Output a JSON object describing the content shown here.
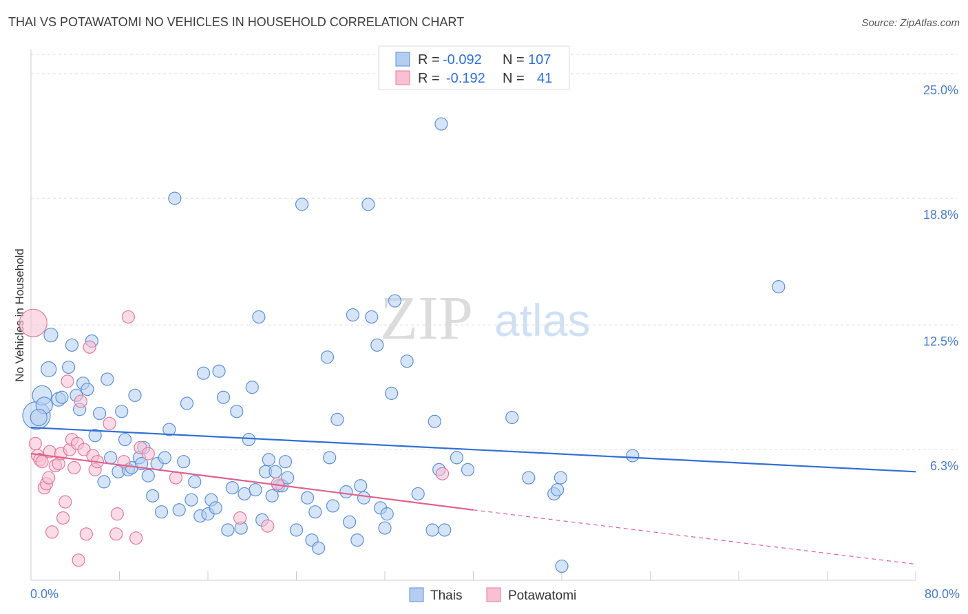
{
  "header": {
    "title": "THAI VS POTAWATOMI NO VEHICLES IN HOUSEHOLD CORRELATION CHART",
    "source": "Source: ZipAtlas.com"
  },
  "watermark": {
    "part1": "ZIP",
    "part2": "atlas"
  },
  "colors": {
    "thais_fill": "#b4cdf0",
    "thais_stroke": "#5b8fd8",
    "thais_line": "#2f6fd6",
    "potawatomi_fill": "#f8c0d2",
    "potawatomi_stroke": "#e3789c",
    "potawatomi_line": "#e0608e",
    "grid": "#dddddd",
    "tick_text": "#4a7cc7"
  },
  "legend": {
    "rows": [
      {
        "r_label": "R =",
        "r_value": "-0.092",
        "n_label": "N =",
        "n_value": "107"
      },
      {
        "r_label": "R =",
        "r_value": "-0.192",
        "n_label": "N =",
        "n_value": "41"
      }
    ]
  },
  "chart_data": {
    "type": "scatter",
    "title": "THAI VS POTAWATOMI NO VEHICLES IN HOUSEHOLD CORRELATION CHART",
    "xlabel": "",
    "ylabel": "No Vehicles in Household",
    "xlim": [
      0,
      80
    ],
    "ylim": [
      -0.2,
      26.2
    ],
    "x_tick_labels": [
      "0.0%",
      "80.0%"
    ],
    "y_ticks": [
      6.3,
      12.5,
      18.8,
      25.0
    ],
    "y_tick_labels": [
      "6.3%",
      "12.5%",
      "18.8%",
      "25.0%"
    ],
    "grid": true,
    "legend_position": "top-center",
    "series": [
      {
        "name": "Thais",
        "r": -0.092,
        "n": 107,
        "trend": {
          "x0": 0,
          "y0": 7.4,
          "x1": 80,
          "y1": 5.2
        },
        "points": [
          [
            0.5,
            8.0,
            20
          ],
          [
            1.0,
            9.0,
            14
          ],
          [
            1.2,
            8.5,
            12
          ],
          [
            1.6,
            10.3,
            11
          ],
          [
            1.8,
            12.0,
            10
          ],
          [
            2.5,
            8.8,
            10
          ],
          [
            2.8,
            8.9,
            9
          ],
          [
            3.4,
            10.4,
            9
          ],
          [
            3.7,
            11.5,
            9
          ],
          [
            4.1,
            9.0,
            9
          ],
          [
            4.4,
            8.3,
            9
          ],
          [
            4.7,
            9.6,
            9
          ],
          [
            5.1,
            9.3,
            9
          ],
          [
            5.5,
            11.7,
            9
          ],
          [
            5.8,
            7.0,
            9
          ],
          [
            6.2,
            8.1,
            9
          ],
          [
            6.6,
            4.7,
            9
          ],
          [
            6.9,
            9.8,
            9
          ],
          [
            7.2,
            5.9,
            9
          ],
          [
            7.9,
            5.2,
            9
          ],
          [
            8.2,
            8.2,
            9
          ],
          [
            8.5,
            6.8,
            9
          ],
          [
            8.8,
            5.3,
            9
          ],
          [
            9.1,
            5.4,
            9
          ],
          [
            9.4,
            9.0,
            9
          ],
          [
            9.8,
            5.9,
            9
          ],
          [
            10.0,
            5.6,
            9
          ],
          [
            10.2,
            6.4,
            9
          ],
          [
            10.6,
            5.0,
            9
          ],
          [
            11.0,
            4.0,
            9
          ],
          [
            11.4,
            5.6,
            9
          ],
          [
            11.8,
            3.2,
            9
          ],
          [
            12.1,
            5.9,
            9
          ],
          [
            12.5,
            7.3,
            9
          ],
          [
            13.0,
            18.8,
            9
          ],
          [
            13.4,
            3.3,
            9
          ],
          [
            13.8,
            5.7,
            9
          ],
          [
            14.1,
            8.6,
            9
          ],
          [
            14.5,
            3.8,
            9
          ],
          [
            14.8,
            4.7,
            9
          ],
          [
            15.3,
            3.0,
            9
          ],
          [
            15.6,
            10.1,
            9
          ],
          [
            16.0,
            3.1,
            9
          ],
          [
            16.3,
            3.8,
            9
          ],
          [
            16.7,
            3.4,
            9
          ],
          [
            17.0,
            10.2,
            9
          ],
          [
            17.4,
            8.9,
            9
          ],
          [
            17.8,
            2.3,
            9
          ],
          [
            18.2,
            4.4,
            9
          ],
          [
            18.6,
            8.2,
            9
          ],
          [
            19.0,
            2.4,
            9
          ],
          [
            19.3,
            4.1,
            9
          ],
          [
            19.7,
            6.8,
            9
          ],
          [
            20.0,
            9.4,
            9
          ],
          [
            20.3,
            4.3,
            9
          ],
          [
            20.6,
            12.9,
            9
          ],
          [
            20.9,
            2.8,
            9
          ],
          [
            21.2,
            5.2,
            9
          ],
          [
            21.5,
            5.8,
            9
          ],
          [
            21.8,
            4.0,
            9
          ],
          [
            22.1,
            5.2,
            9
          ],
          [
            22.4,
            4.5,
            9
          ],
          [
            22.7,
            4.5,
            9
          ],
          [
            23.0,
            5.7,
            9
          ],
          [
            23.2,
            4.9,
            9
          ],
          [
            24.0,
            2.3,
            9
          ],
          [
            24.5,
            18.5,
            9
          ],
          [
            25.0,
            3.9,
            9
          ],
          [
            25.4,
            1.8,
            9
          ],
          [
            25.7,
            3.2,
            9
          ],
          [
            26.0,
            1.4,
            9
          ],
          [
            26.8,
            10.9,
            9
          ],
          [
            27.0,
            5.9,
            9
          ],
          [
            27.3,
            3.5,
            9
          ],
          [
            27.7,
            7.8,
            9
          ],
          [
            28.5,
            4.2,
            9
          ],
          [
            28.8,
            2.7,
            9
          ],
          [
            29.1,
            13.0,
            9
          ],
          [
            29.5,
            1.8,
            9
          ],
          [
            29.8,
            4.5,
            9
          ],
          [
            30.1,
            3.9,
            9
          ],
          [
            30.5,
            18.5,
            9
          ],
          [
            30.8,
            12.9,
            9
          ],
          [
            31.3,
            11.5,
            9
          ],
          [
            31.6,
            3.4,
            9
          ],
          [
            32.0,
            2.4,
            9
          ],
          [
            32.2,
            3.1,
            9
          ],
          [
            32.6,
            9.1,
            9
          ],
          [
            32.9,
            13.7,
            9
          ],
          [
            34.0,
            10.7,
            9
          ],
          [
            35.0,
            4.1,
            9
          ],
          [
            36.3,
            2.3,
            9
          ],
          [
            36.5,
            7.7,
            9
          ],
          [
            36.9,
            5.3,
            9
          ],
          [
            37.1,
            22.5,
            9
          ],
          [
            37.4,
            2.3,
            9
          ],
          [
            38.5,
            5.9,
            9
          ],
          [
            39.5,
            5.3,
            9
          ],
          [
            43.5,
            7.9,
            9
          ],
          [
            45.0,
            4.9,
            9
          ],
          [
            47.3,
            4.1,
            9
          ],
          [
            47.6,
            4.3,
            9
          ],
          [
            47.9,
            4.9,
            9
          ],
          [
            48.0,
            0.5,
            9
          ],
          [
            54.4,
            6.0,
            9
          ],
          [
            67.6,
            14.4,
            9
          ],
          [
            0.7,
            7.9,
            12
          ]
        ]
      },
      {
        "name": "Potawatomi",
        "r": -0.192,
        "n": 41,
        "trend": {
          "x0": 0,
          "y0": 6.1,
          "x1": 40,
          "y1": 3.3
        },
        "trend_dashed": {
          "x0": 40,
          "y0": 3.3,
          "x1": 80,
          "y1": 0.6
        },
        "points": [
          [
            0.2,
            12.6,
            20
          ],
          [
            0.4,
            6.6,
            9
          ],
          [
            0.6,
            6.0,
            9
          ],
          [
            0.8,
            5.8,
            9
          ],
          [
            1.0,
            5.7,
            9
          ],
          [
            1.2,
            4.4,
            9
          ],
          [
            1.4,
            4.6,
            9
          ],
          [
            1.6,
            4.9,
            9
          ],
          [
            1.7,
            6.2,
            9
          ],
          [
            1.9,
            2.2,
            9
          ],
          [
            2.2,
            5.5,
            9
          ],
          [
            2.5,
            5.6,
            9
          ],
          [
            2.7,
            6.1,
            9
          ],
          [
            2.9,
            2.9,
            9
          ],
          [
            3.1,
            3.7,
            9
          ],
          [
            3.3,
            9.7,
            9
          ],
          [
            3.5,
            6.3,
            9
          ],
          [
            3.7,
            6.8,
            9
          ],
          [
            3.9,
            5.4,
            9
          ],
          [
            4.2,
            6.6,
            9
          ],
          [
            4.3,
            0.8,
            9
          ],
          [
            4.5,
            8.7,
            9
          ],
          [
            4.8,
            6.3,
            9
          ],
          [
            5.0,
            2.1,
            9
          ],
          [
            5.3,
            11.4,
            9
          ],
          [
            5.6,
            6.0,
            9
          ],
          [
            5.8,
            5.3,
            9
          ],
          [
            6.0,
            5.7,
            9
          ],
          [
            7.1,
            7.6,
            9
          ],
          [
            7.7,
            2.1,
            9
          ],
          [
            7.8,
            3.1,
            9
          ],
          [
            8.4,
            5.7,
            9
          ],
          [
            8.8,
            12.9,
            9
          ],
          [
            9.5,
            1.9,
            9
          ],
          [
            9.9,
            6.4,
            9
          ],
          [
            10.6,
            6.1,
            9
          ],
          [
            13.1,
            4.9,
            9
          ],
          [
            18.9,
            2.9,
            9
          ],
          [
            21.4,
            2.5,
            9
          ],
          [
            22.3,
            4.6,
            9
          ],
          [
            37.2,
            5.1,
            9
          ]
        ]
      }
    ]
  },
  "bottom_legend": {
    "items": [
      {
        "label": "Thais"
      },
      {
        "label": "Potawatomi"
      }
    ]
  }
}
